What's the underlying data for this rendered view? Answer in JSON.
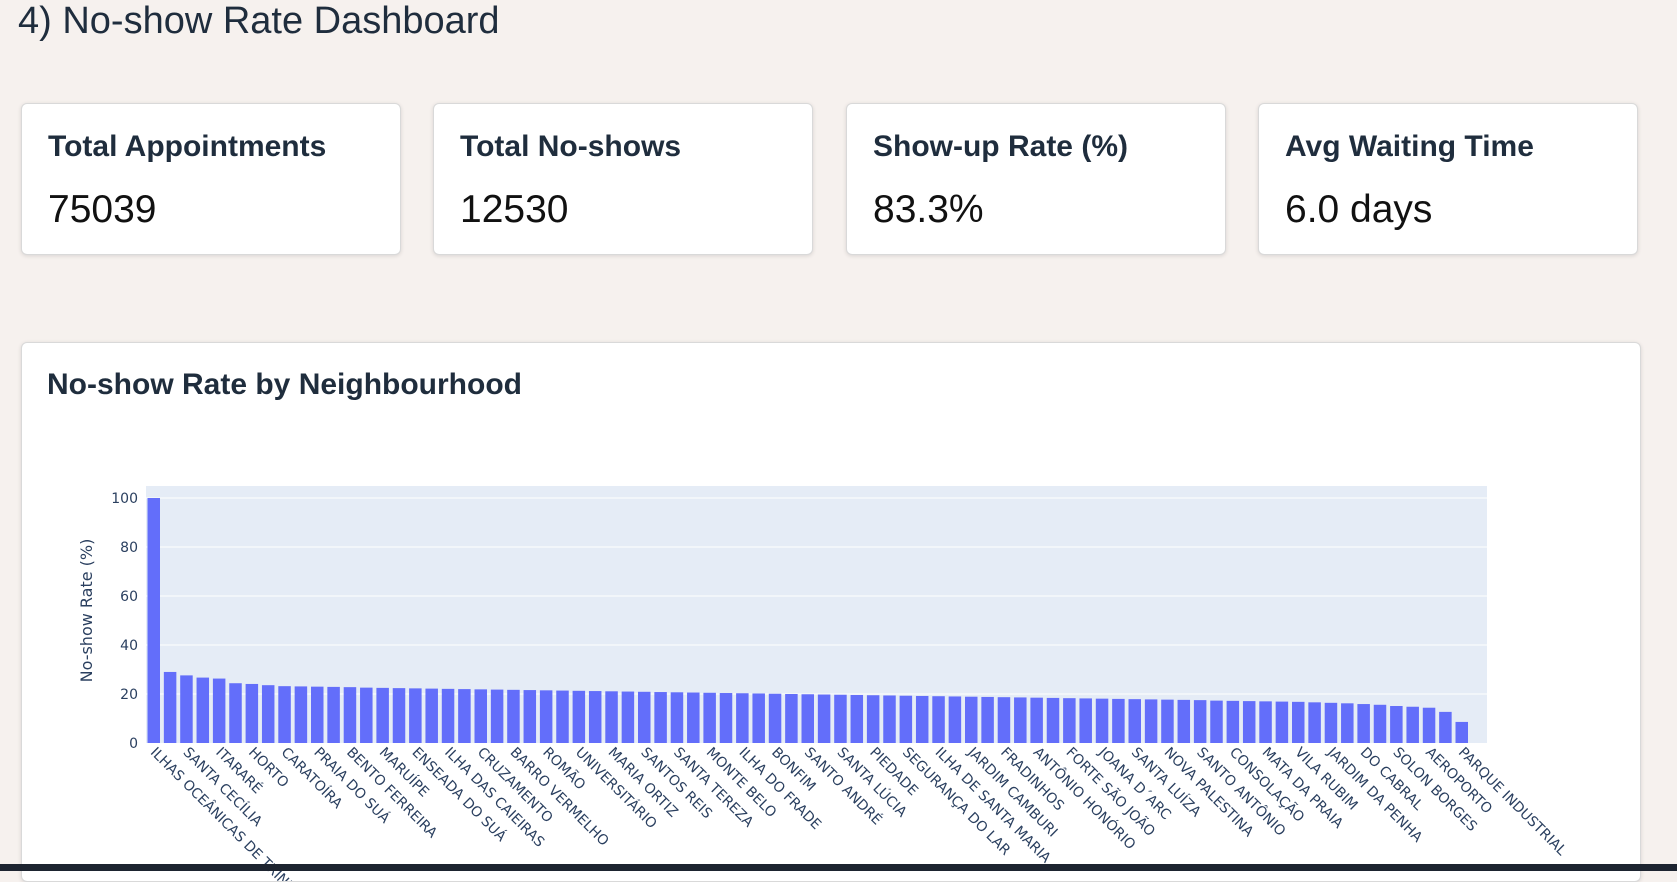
{
  "page": {
    "title": "4) No-show Rate Dashboard"
  },
  "kpis": [
    {
      "label": "Total Appointments",
      "value": "75039"
    },
    {
      "label": "Total No-shows",
      "value": "12530"
    },
    {
      "label": "Show-up Rate (%)",
      "value": "83.3%"
    },
    {
      "label": "Avg Waiting Time",
      "value": "6.0 days"
    }
  ],
  "chart_card": {
    "title": "No-show Rate by Neighbourhood"
  },
  "colors": {
    "bar": "#636efa",
    "plot_bg": "#e5ecf6",
    "grid": "#ffffff"
  },
  "chart_data": {
    "type": "bar",
    "title": "No-show Rate by Neighbourhood",
    "xlabel": "",
    "ylabel": "No-show Rate (%)",
    "ylim": [
      0,
      100
    ],
    "yticks": [
      0,
      20,
      40,
      60,
      80,
      100
    ],
    "grid": true,
    "categories": [
      "ILHAS OCEÂNICAS DE TRINDADE",
      "",
      "SANTA CECÍLIA",
      "",
      "ITARARÉ",
      "",
      "HORTO",
      "",
      "CARATOÍRA",
      "",
      "PRAIA DO SUÁ",
      "",
      "BENTO FERREIRA",
      "",
      "MARUÍPE",
      "",
      "ENSEADA DO SUÁ",
      "",
      "ILHA DAS CAIEIRAS",
      "",
      "CRUZAMENTO",
      "",
      "BARRO VERMELHO",
      "",
      "ROMÃO",
      "",
      "UNIVERSITÁRIO",
      "",
      "MARIA ORTIZ",
      "",
      "SANTOS REIS",
      "",
      "SANTA TEREZA",
      "",
      "MONTE BELO",
      "",
      "ILHA DO FRADE",
      "",
      "BONFIM",
      "",
      "SANTO ANDRÉ",
      "",
      "SANTA LÚCIA",
      "",
      "PIEDADE",
      "",
      "SEGURANÇA DO LAR",
      "",
      "ILHA DE SANTA MARIA",
      "",
      "JARDIM CAMBURI",
      "",
      "FRADINHOS",
      "",
      "ANTÔNIO HONÓRIO",
      "",
      "FORTE SÃO JOÃO",
      "",
      "JOANA D´ARC",
      "",
      "SANTA LUÍZA",
      "",
      "NOVA PALESTINA",
      "",
      "SANTO ANTÔNIO",
      "",
      "CONSOLAÇÃO",
      "",
      "MATA DA PRAIA",
      "",
      "VILA RUBIM",
      "",
      "JARDIM DA PENHA",
      "",
      "DO CABRAL",
      "",
      "SOLON BORGES",
      "",
      "AEROPORTO",
      "",
      "PARQUE INDUSTRIAL"
    ],
    "values": [
      100,
      29,
      27.6,
      26.7,
      26.3,
      24.4,
      24.1,
      23.6,
      23.2,
      23.1,
      23.0,
      22.9,
      22.8,
      22.6,
      22.5,
      22.4,
      22.3,
      22.2,
      22.1,
      22.0,
      21.9,
      21.8,
      21.7,
      21.6,
      21.5,
      21.4,
      21.3,
      21.2,
      21.1,
      21.0,
      20.9,
      20.8,
      20.7,
      20.6,
      20.5,
      20.4,
      20.3,
      20.2,
      20.1,
      20.0,
      19.9,
      19.8,
      19.7,
      19.6,
      19.5,
      19.4,
      19.3,
      19.2,
      19.1,
      19.0,
      18.9,
      18.8,
      18.7,
      18.6,
      18.5,
      18.4,
      18.3,
      18.2,
      18.1,
      18.0,
      17.9,
      17.8,
      17.7,
      17.6,
      17.5,
      17.3,
      17.2,
      17.1,
      17.0,
      16.9,
      16.8,
      16.6,
      16.4,
      16.2,
      15.9,
      15.6,
      15.1,
      14.8,
      14.4,
      12.7,
      8.6
    ]
  }
}
